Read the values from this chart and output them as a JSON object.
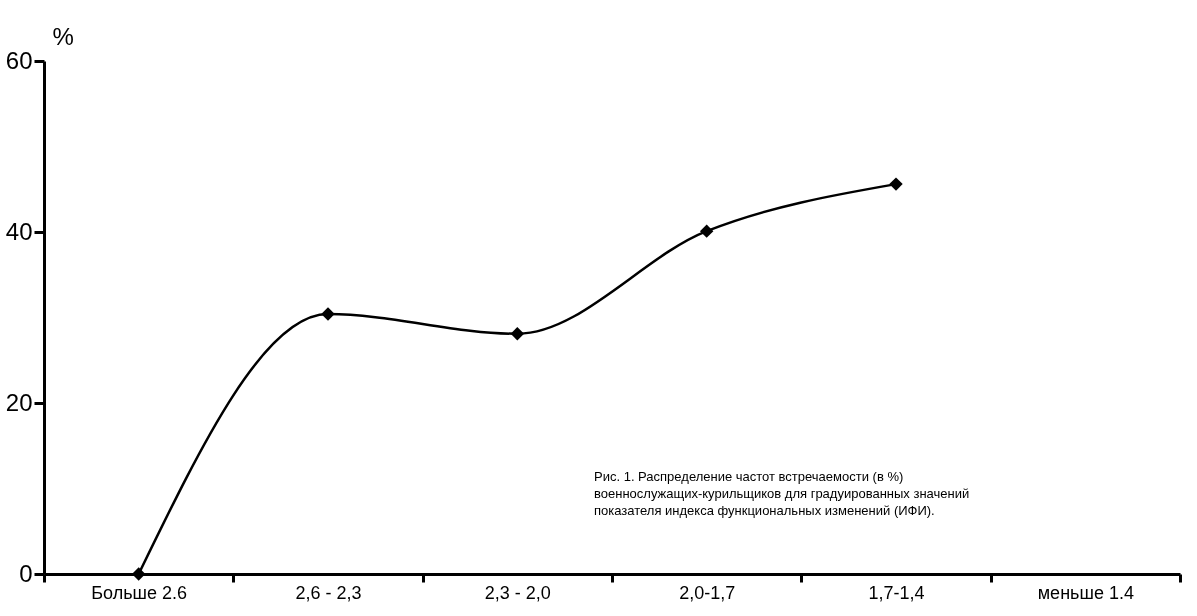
{
  "chart_data": {
    "type": "line",
    "ylabel": "%",
    "categories": [
      "Больше 2.6",
      "2,6 - 2,3",
      "2,3 - 2,0",
      "2,0-1,7",
      "1,7-1,4",
      "меньше 1.4"
    ],
    "series": [
      {
        "color": "#000000",
        "values": [
          0,
          30.4,
          28.1,
          40.1,
          45.6,
          null
        ]
      }
    ],
    "ylim": [
      0,
      60
    ],
    "yticks": [
      0,
      20,
      40,
      60
    ],
    "marker": "diamond",
    "line_style": "solid",
    "grid": false,
    "legend": false,
    "annotations": [
      "Рис. 1. Распределение частот встречаемости (в %) военнослужащих-курильщиков для градуированных значений показателя индекса функциональных изменений (ИФИ)."
    ]
  }
}
